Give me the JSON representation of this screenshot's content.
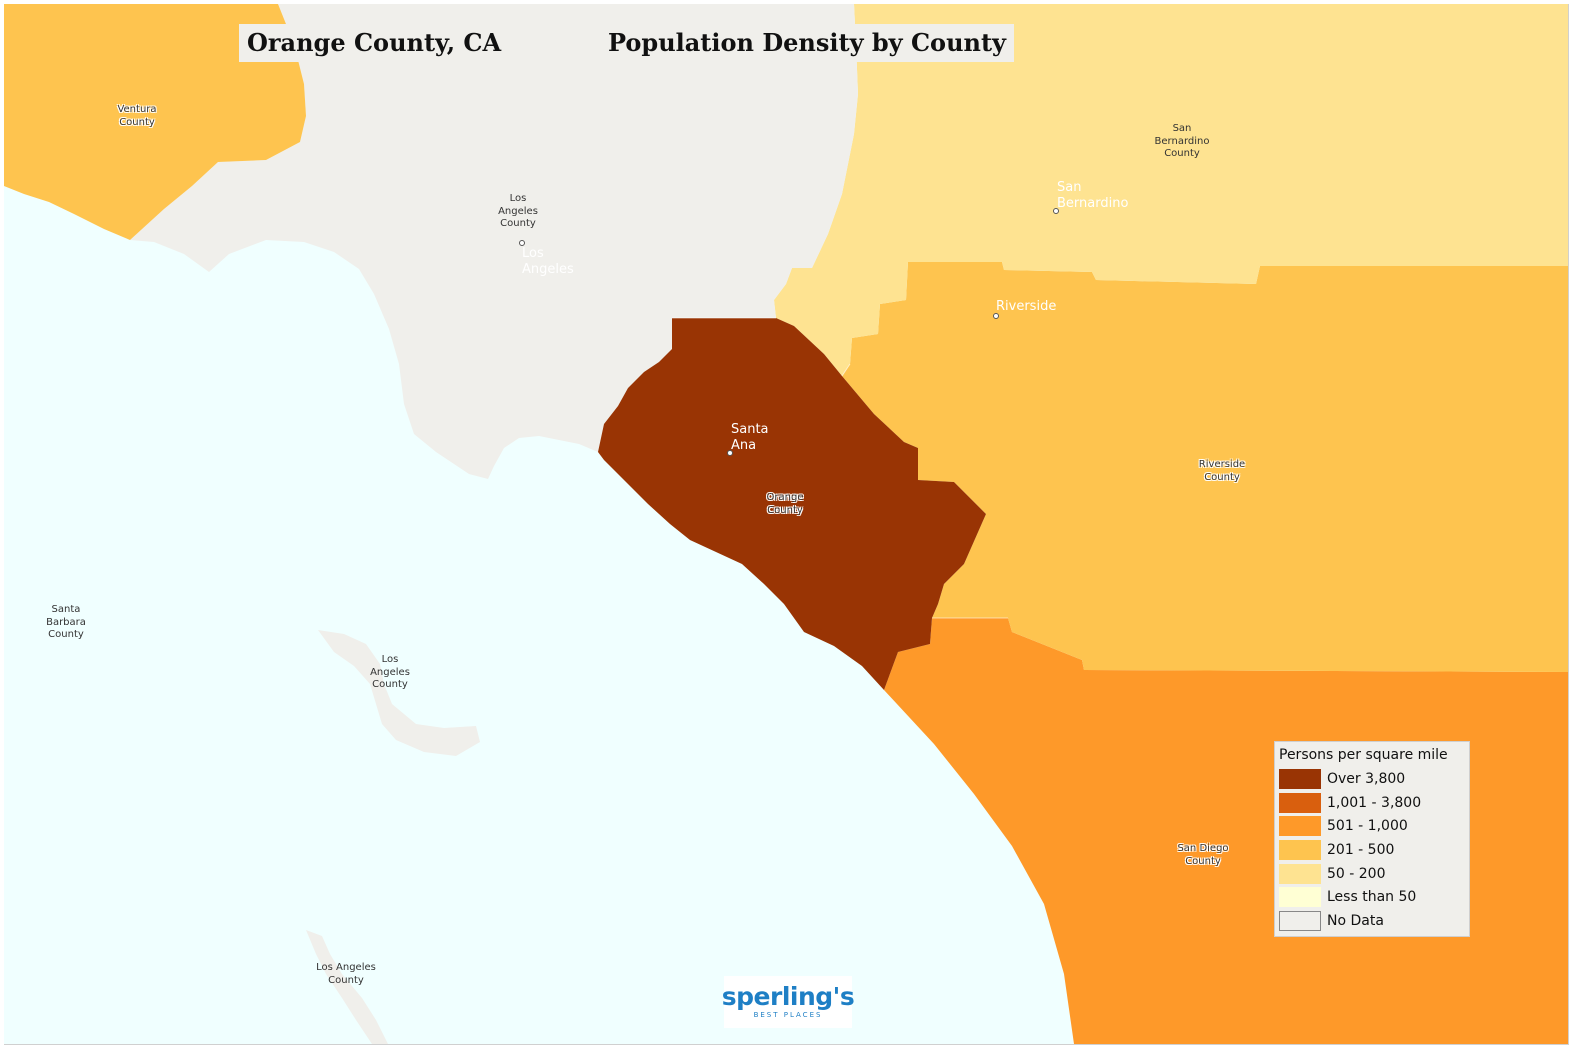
{
  "title": {
    "location": "Orange County, CA",
    "subject": "Population Density by County"
  },
  "colors": {
    "ocean": "#f0ffff",
    "over_3800": "#993404",
    "c1001_3800": "#d95f0e",
    "c501_1000": "#fe9929",
    "c201_500": "#fec44f",
    "c50_200": "#fee391",
    "less_than_50": "#ffffd4",
    "no_data": "#f0efeb",
    "logo_blue": "#1e7fc5"
  },
  "regions": {
    "ventura": {
      "name": "Ventura County",
      "density_class": "201 - 500"
    },
    "los_angeles": {
      "name": "Los Angeles County",
      "density_class": "No Data"
    },
    "san_bernardino": {
      "name": "San Bernardino County",
      "density_class": "50 - 200"
    },
    "riverside": {
      "name": "Riverside County",
      "density_class": "201 - 500"
    },
    "orange": {
      "name": "Orange County",
      "density_class": "Over 3,800"
    },
    "san_diego": {
      "name": "San Diego County",
      "density_class": "501 - 1,000"
    }
  },
  "county_labels": {
    "ventura": "Ventura\nCounty",
    "los_angeles": "Los\nAngeles\nCounty",
    "san_bernardino": "San\nBernardino\nCounty",
    "riverside": "Riverside\nCounty",
    "orange": "Orange\nCounty",
    "san_diego": "San Diego\nCounty",
    "santa_barbara": "Santa\nBarbara\nCounty",
    "catalina": "Los\nAngeles\nCounty",
    "san_clemente": "Los Angeles\nCounty"
  },
  "city_labels": {
    "los_angeles": "Los\nAngeles",
    "san_bernardino": "San\nBernardino",
    "riverside": "Riverside",
    "santa_ana": "Santa\nAna"
  },
  "legend": {
    "title": "Persons per square mile",
    "items": [
      {
        "label": "Over 3,800",
        "color": "#993404"
      },
      {
        "label": "1,001 - 3,800",
        "color": "#d95f0e"
      },
      {
        "label": "501 - 1,000",
        "color": "#fe9929"
      },
      {
        "label": "201 - 500",
        "color": "#fec44f"
      },
      {
        "label": "50 - 200",
        "color": "#fee391"
      },
      {
        "label": "Less than 50",
        "color": "#ffffd4"
      },
      {
        "label": "No Data",
        "color": "#f0efeb"
      }
    ]
  },
  "logo": {
    "name": "sperling's",
    "tagline": "BEST PLACES"
  }
}
